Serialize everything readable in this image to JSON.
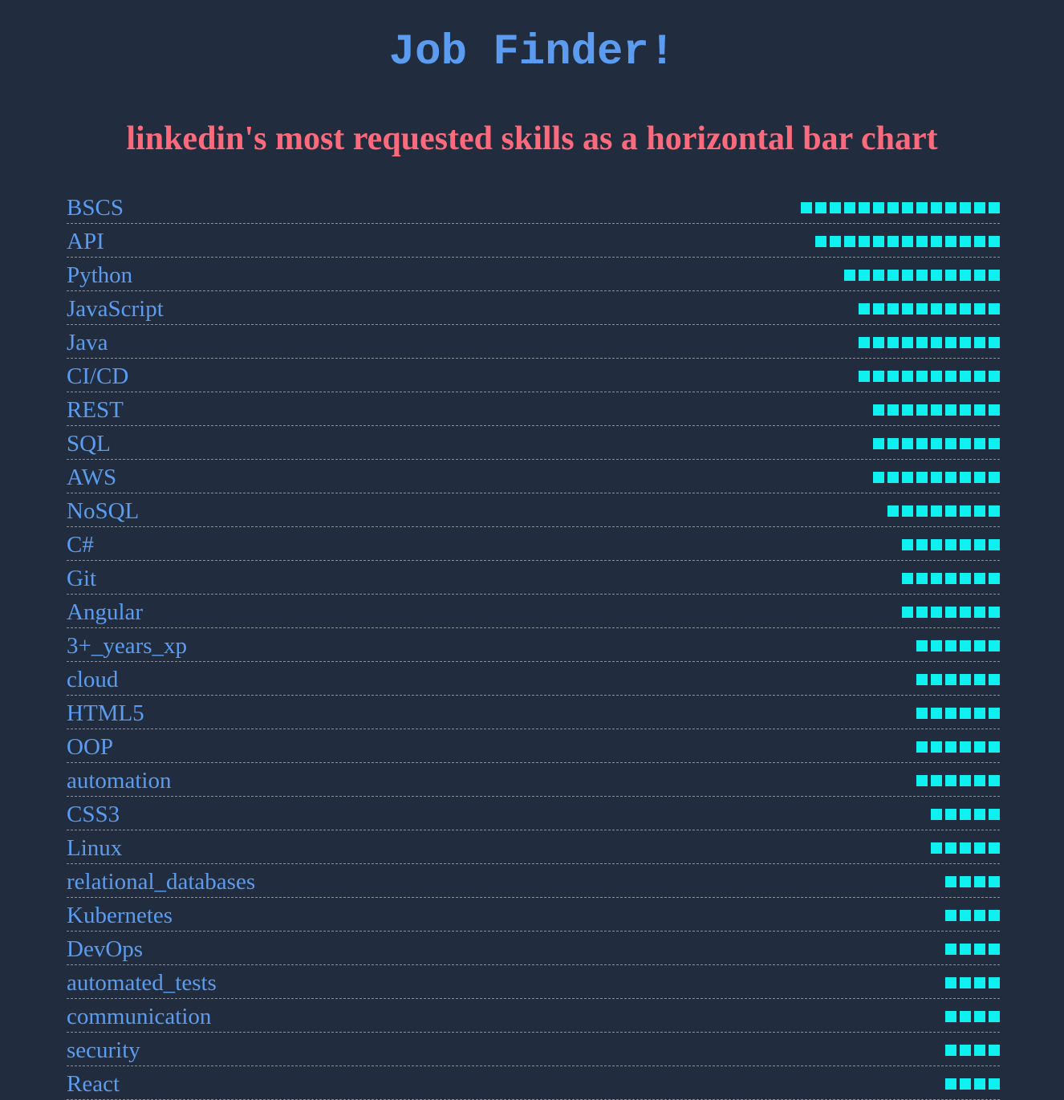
{
  "header": {
    "title": "Job Finder!",
    "subtitle": "linkedin's most requested skills as a horizontal bar chart"
  },
  "colors": {
    "background": "#212d3e",
    "title": "#5b9cf0",
    "subtitle": "#fc6a7c",
    "label": "#5b9cf0",
    "bar": "#0ff0f0",
    "rule": "#8a8f99"
  },
  "chart_data": {
    "type": "bar",
    "orientation": "horizontal",
    "title": "linkedin's most requested skills as a horizontal bar chart",
    "xlabel": "",
    "ylabel": "",
    "grid": false,
    "categories": [
      "BSCS",
      "API",
      "Python",
      "JavaScript",
      "Java",
      "CI/CD",
      "REST",
      "SQL",
      "AWS",
      "NoSQL",
      "C#",
      "Git",
      "Angular",
      "3+_years_xp",
      "cloud",
      "HTML5",
      "OOP",
      "automation",
      "CSS3",
      "Linux",
      "relational_databases",
      "Kubernetes",
      "DevOps",
      "automated_tests",
      "communication",
      "security",
      "React"
    ],
    "values": [
      14,
      13,
      11,
      10,
      10,
      10,
      9,
      9,
      9,
      8,
      7,
      7,
      7,
      6,
      6,
      6,
      6,
      6,
      5,
      5,
      4,
      4,
      4,
      4,
      4,
      4,
      4
    ]
  }
}
